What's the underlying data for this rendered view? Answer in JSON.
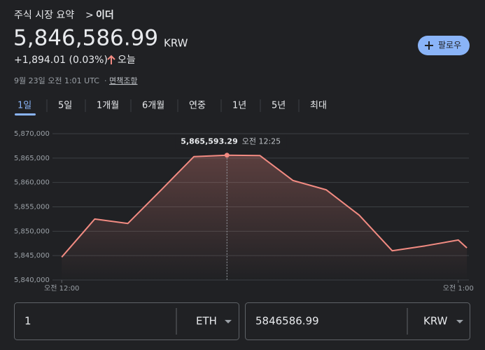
{
  "header": {
    "breadcrumb": [
      "주식 시장 요약",
      ">",
      "이더"
    ],
    "price": "5,846,586.99",
    "currency": "KRW",
    "change": "+1,894.01 (0.03%)",
    "period": "오늘",
    "follow": "팔로우",
    "timestamp": "9월 23일 오전 1:01 UTC",
    "separator": "·",
    "disclaimer": "면책조항"
  },
  "tabs": [
    "1일",
    "5일",
    "1개월",
    "6개월",
    "연중",
    "1년",
    "5년",
    "최대"
  ],
  "chart_data": {
    "type": "line",
    "x": [
      0,
      5,
      10,
      15,
      20,
      25,
      30,
      35,
      40,
      45,
      50,
      55,
      60,
      61.3
    ],
    "values": [
      5844700,
      5852500,
      5851600,
      5858400,
      5865300,
      5865593.29,
      5865500,
      5860400,
      5858500,
      5853300,
      5846000,
      5847000,
      5848200,
      5846586.99
    ],
    "color": "#f28b82",
    "xlim": [
      -1.4,
      61.5
    ],
    "xticks": [
      {
        "value": 0,
        "label": "오전 12:00"
      },
      {
        "value": 60,
        "label": "오전 1:00"
      }
    ],
    "ylim": [
      5840000,
      5870000
    ],
    "yticks": [
      {
        "value": 5840000,
        "label": "5,840,000"
      },
      {
        "value": 5845000,
        "label": "5,845,000"
      },
      {
        "value": 5850000,
        "label": "5,850,000"
      },
      {
        "value": 5855000,
        "label": "5,855,000"
      },
      {
        "value": 5860000,
        "label": "5,860,000"
      },
      {
        "value": 5865000,
        "label": "5,865,000"
      },
      {
        "value": 5870000,
        "label": "5,870,000"
      }
    ],
    "grid": true,
    "tooltip": {
      "label": "5,865,593.29",
      "time": "오전 12:25"
    }
  },
  "converter": {
    "from_amount": "1",
    "from_currency": "ETH",
    "to_amount": "5846586.99",
    "to_currency": "KRW"
  }
}
